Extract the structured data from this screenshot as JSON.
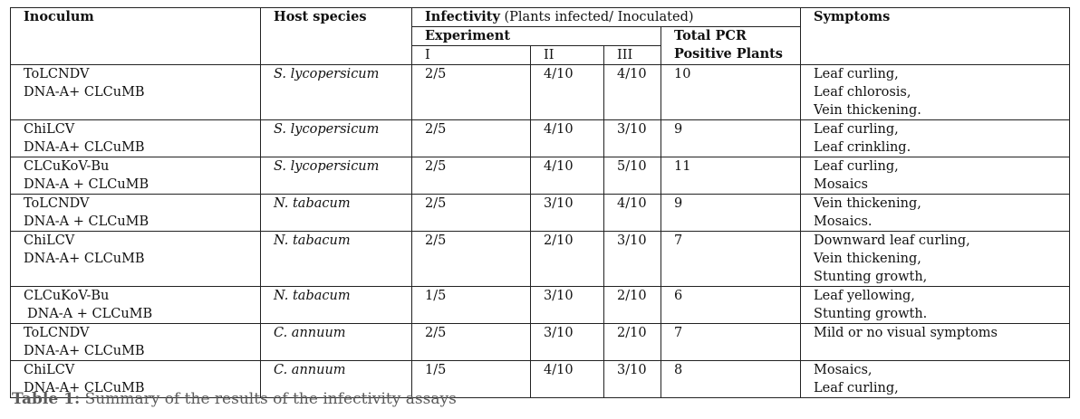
{
  "header": {
    "inoculum": "Inoculum",
    "host": "Host species",
    "infectivity_bold": "Infectivity",
    "infectivity_rest": " (Plants infected/ Inoculated)",
    "experiment": "Experiment",
    "total_pcr_1": "Total PCR",
    "total_pcr_2": "Positive Plants",
    "symptoms": "Symptoms",
    "col_i": "I",
    "col_ii": "II",
    "col_iii": "III"
  },
  "rows": [
    {
      "inoculum": [
        "ToLCNDV",
        "DNA-A+ CLCuMB"
      ],
      "host": "S. lycopersicum",
      "i": "2/5",
      "ii": "4/10",
      "iii": "4/10",
      "total": "10",
      "symptoms": [
        "Leaf curling,",
        "Leaf chlorosis,",
        "Vein thickening."
      ]
    },
    {
      "inoculum": [
        "ChiLCV",
        "DNA-A+ CLCuMB"
      ],
      "host": "S. lycopersicum",
      "i": "2/5",
      "ii": "4/10",
      "iii": "3/10",
      "total": "9",
      "symptoms": [
        "Leaf curling,",
        "Leaf crinkling."
      ]
    },
    {
      "inoculum": [
        "CLCuKoV-Bu",
        "DNA-A + CLCuMB"
      ],
      "host": "S. lycopersicum",
      "i": "2/5",
      "ii": "4/10",
      "iii": "5/10",
      "total": "11",
      "symptoms": [
        "Leaf curling,",
        "Mosaics"
      ]
    },
    {
      "inoculum": [
        "ToLCNDV",
        "DNA-A + CLCuMB"
      ],
      "host": "N. tabacum",
      "i": "2/5",
      "ii": "3/10",
      "iii": "4/10",
      "total": "9",
      "symptoms": [
        "Vein thickening,",
        "Mosaics."
      ]
    },
    {
      "inoculum": [
        "ChiLCV",
        "DNA-A+ CLCuMB"
      ],
      "host": "N. tabacum",
      "i": "2/5",
      "ii": "2/10",
      "iii": "3/10",
      "total": "7",
      "symptoms": [
        "Downward leaf curling,",
        "Vein thickening,",
        "Stunting growth,"
      ]
    },
    {
      "inoculum": [
        "CLCuKoV-Bu",
        "DNA-A + CLCuMB"
      ],
      "host": "N. tabacum",
      "i": "1/5",
      "ii": "3/10",
      "iii": "2/10",
      "total": "6",
      "symptoms": [
        "Leaf yellowing,",
        "Stunting growth."
      ]
    },
    {
      "inoculum": [
        "ToLCNDV",
        "DNA-A+ CLCuMB"
      ],
      "host": "C. annuum",
      "i": "2/5",
      "ii": "3/10",
      "iii": "2/10",
      "total": "7",
      "symptoms": [
        "Mild or no visual symptoms"
      ]
    },
    {
      "inoculum": [
        "ChiLCV",
        "DNA-A+ CLCuMB"
      ],
      "host": "C. annuum",
      "i": "1/5",
      "ii": "4/10",
      "iii": "3/10",
      "total": "8",
      "symptoms": [
        "Mosaics,",
        "Leaf curling,"
      ]
    }
  ],
  "caption": {
    "label": "Table 1:",
    "text": " Summary of the results of the infectivity assays"
  }
}
